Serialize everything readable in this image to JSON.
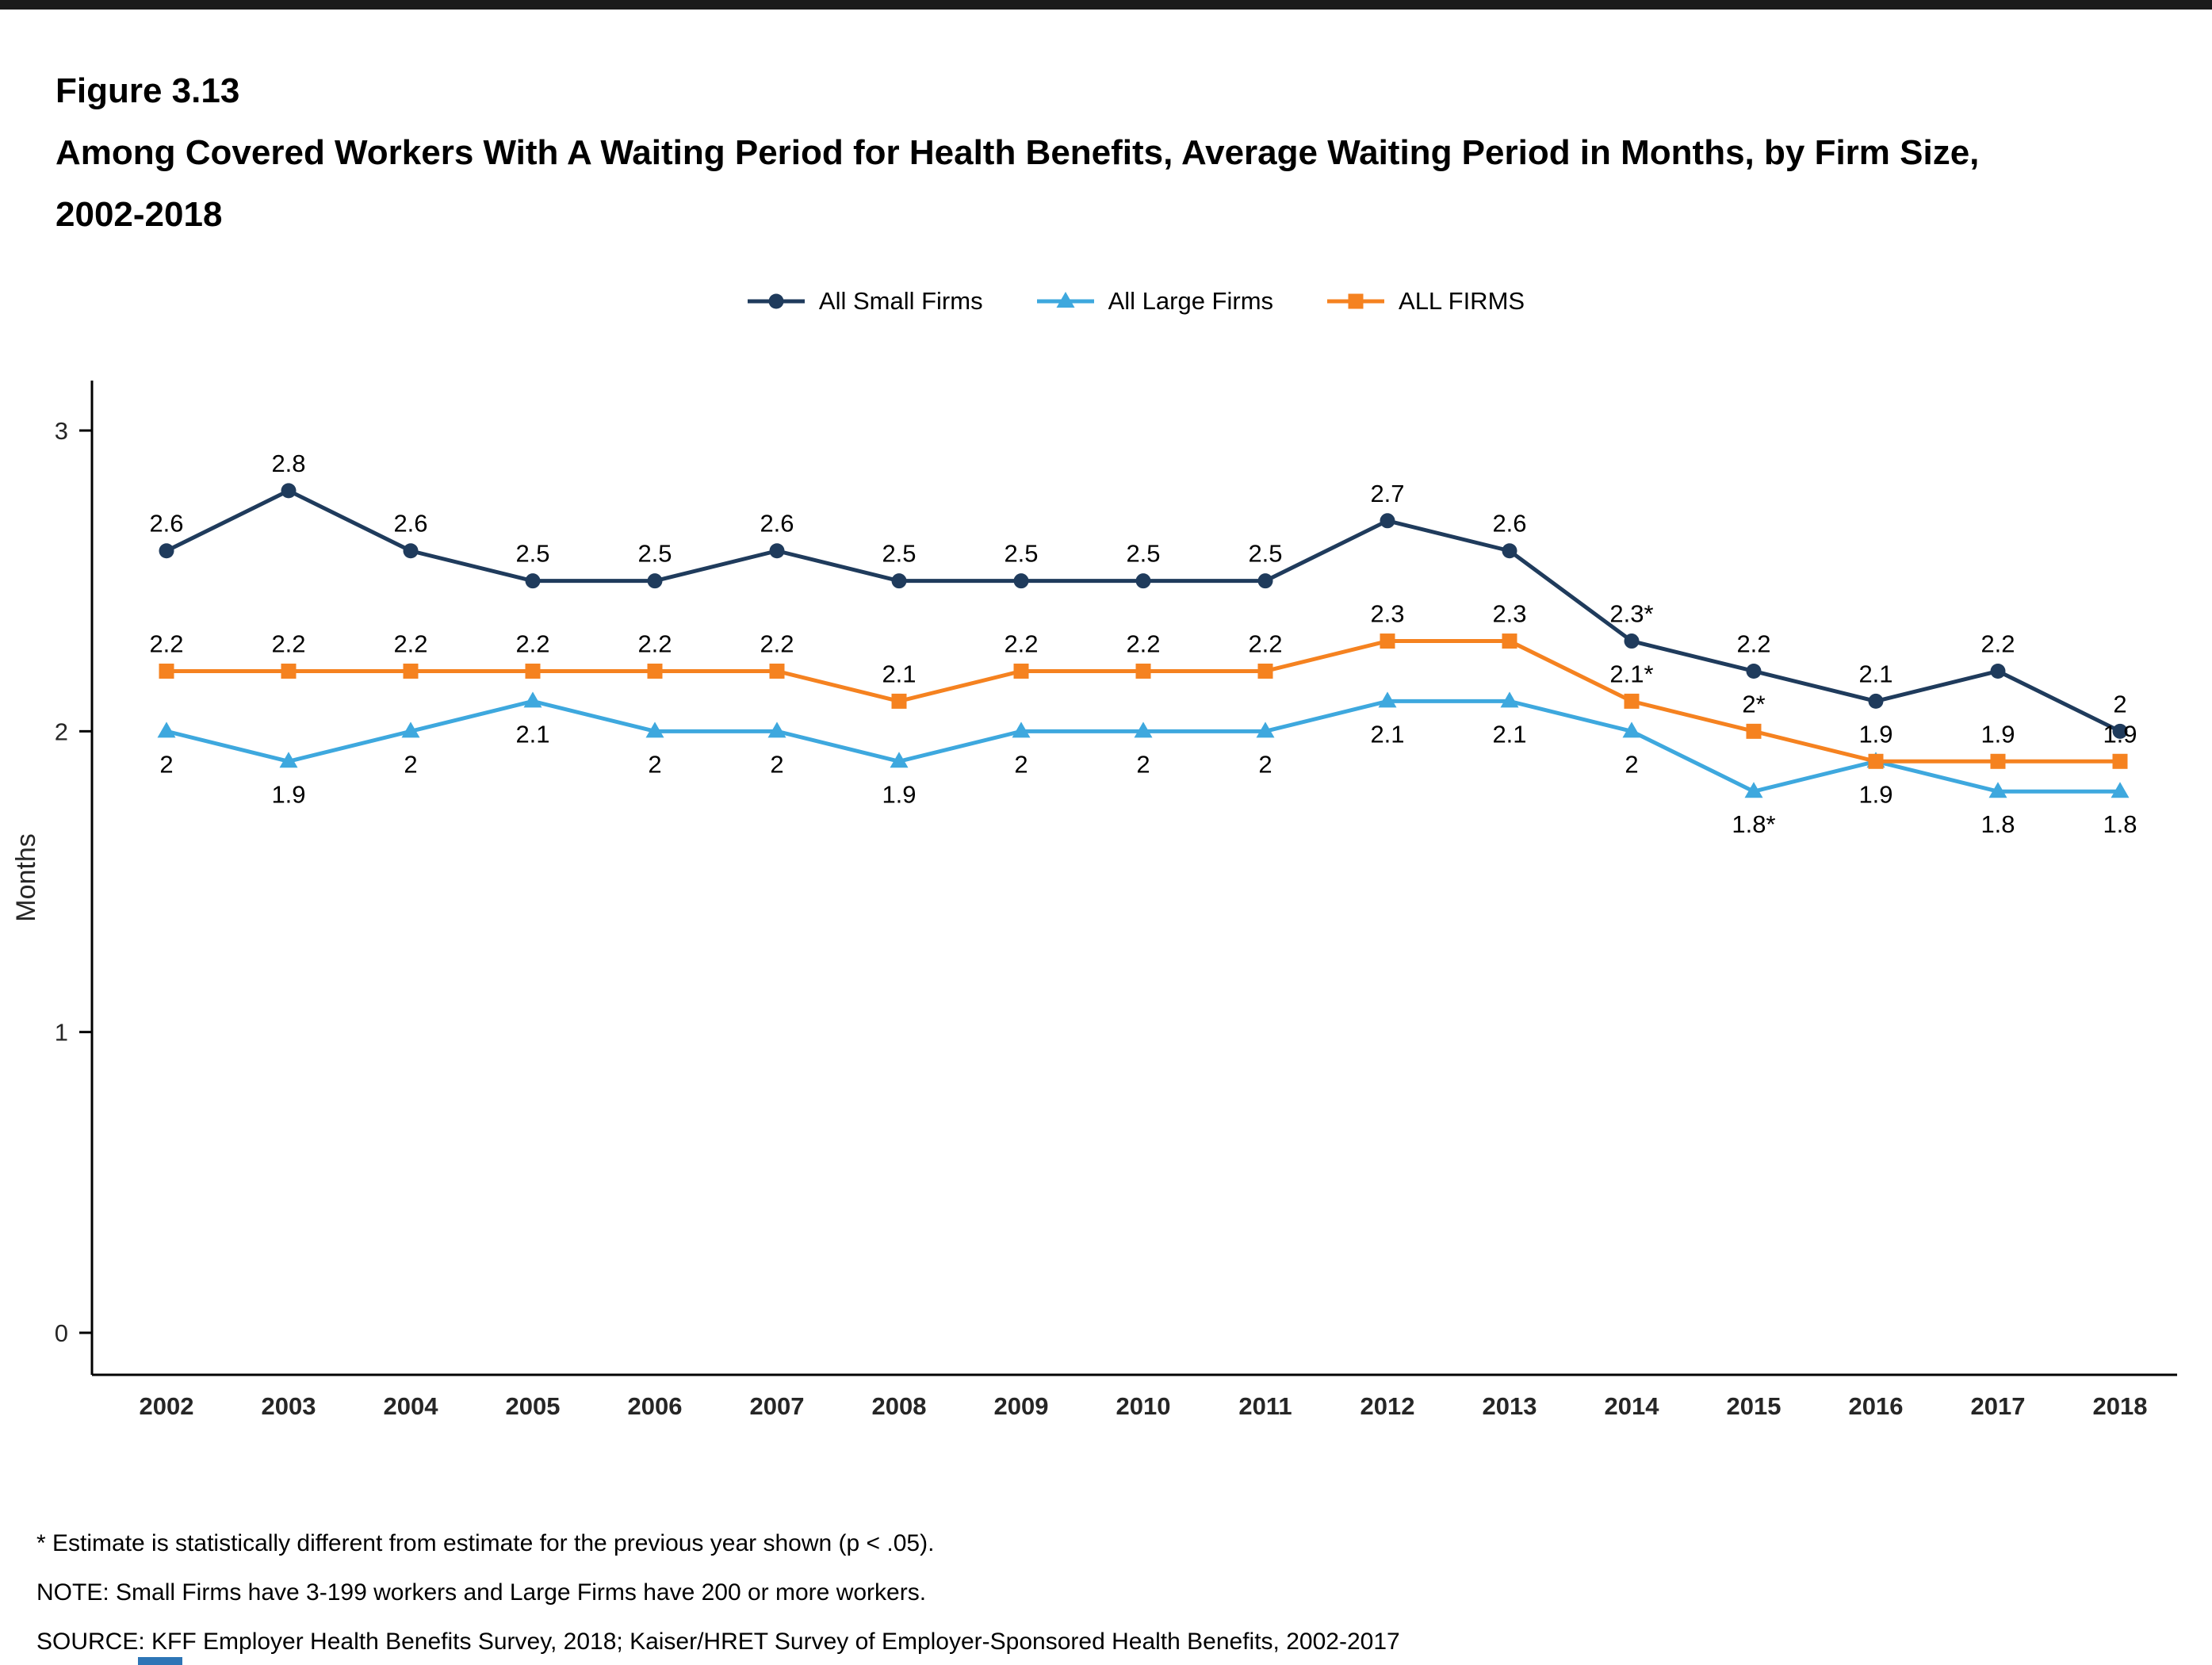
{
  "header": {
    "figure_number": "Figure 3.13",
    "title": "Among Covered Workers With A Waiting Period for Health Benefits, Average Waiting Period in Months, by Firm Size, 2002-2018"
  },
  "chart_data": {
    "type": "line",
    "title": "Among Covered Workers With A Waiting Period for Health Benefits, Average Waiting Period in Months, by Firm Size, 2002-2018",
    "x": [
      2002,
      2003,
      2004,
      2005,
      2006,
      2007,
      2008,
      2009,
      2010,
      2011,
      2012,
      2013,
      2014,
      2015,
      2016,
      2017,
      2018
    ],
    "xlabel": "",
    "ylabel": "Months",
    "ylim": [
      0,
      3.17
    ],
    "yticks": [
      0,
      1,
      2,
      3
    ],
    "grid": false,
    "legend_position": "top",
    "series": [
      {
        "name": "All Small Firms",
        "color": "#1F3B5C",
        "marker": "circle",
        "label_position": "above",
        "values": [
          2.6,
          2.8,
          2.6,
          2.5,
          2.5,
          2.6,
          2.5,
          2.5,
          2.5,
          2.5,
          2.7,
          2.6,
          2.3,
          2.2,
          2.1,
          2.2,
          2.0
        ],
        "labels": [
          "2.6",
          "2.8",
          "2.6",
          "2.5",
          "2.5",
          "2.6",
          "2.5",
          "2.5",
          "2.5",
          "2.5",
          "2.7",
          "2.6",
          "2.3*",
          "2.2",
          "2.1",
          "2.2",
          "2"
        ]
      },
      {
        "name": "All Large Firms",
        "color": "#3EA8DE",
        "marker": "triangle",
        "label_position": "below",
        "values": [
          2.0,
          1.9,
          2.0,
          2.1,
          2.0,
          2.0,
          1.9,
          2.0,
          2.0,
          2.0,
          2.1,
          2.1,
          2.0,
          1.8,
          1.9,
          1.8,
          1.8
        ],
        "labels": [
          "2",
          "1.9",
          "2",
          "2.1",
          "2",
          "2",
          "1.9",
          "2",
          "2",
          "2",
          "2.1",
          "2.1",
          "2",
          "1.8*",
          "1.9",
          "1.8",
          "1.8"
        ]
      },
      {
        "name": "ALL FIRMS",
        "color": "#F58220",
        "marker": "square",
        "label_position": "above",
        "values": [
          2.2,
          2.2,
          2.2,
          2.2,
          2.2,
          2.2,
          2.1,
          2.2,
          2.2,
          2.2,
          2.3,
          2.3,
          2.1,
          2.0,
          1.9,
          1.9,
          1.9
        ],
        "labels": [
          "2.2",
          "2.2",
          "2.2",
          "2.2",
          "2.2",
          "2.2",
          "2.1",
          "2.2",
          "2.2",
          "2.2",
          "2.3",
          "2.3",
          "2.1*",
          "2*",
          "1.9",
          "1.9",
          "1.9"
        ]
      }
    ]
  },
  "footnotes": [
    "* Estimate is statistically different from estimate for the previous year shown (p < .05).",
    "NOTE: Small Firms have 3-199 workers and Large Firms have 200 or more workers.",
    "SOURCE: KFF Employer Health Benefits Survey, 2018; Kaiser/HRET Survey of Employer-Sponsored Health Benefits, 2002-2017"
  ]
}
